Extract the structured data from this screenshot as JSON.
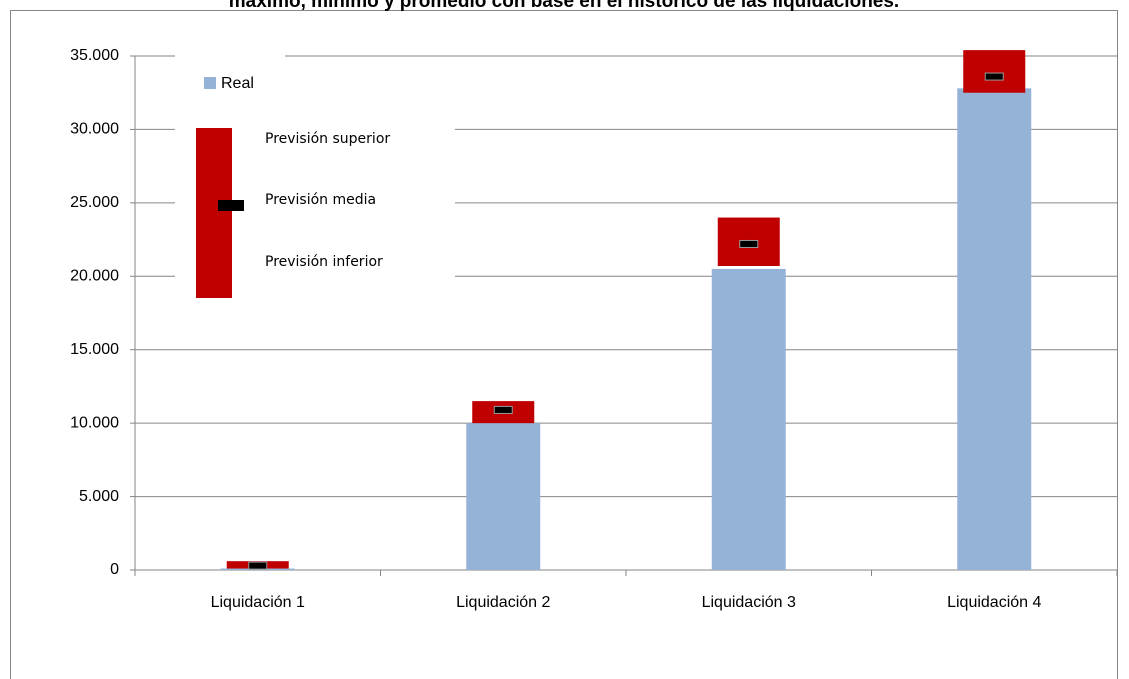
{
  "chart_data": {
    "type": "bar",
    "title": "máximo, mínimo y promedio con base en el histórico de las liquidaciones.",
    "categories": [
      "Liquidación 1",
      "Liquidación 2",
      "Liquidación 3",
      "Liquidación 4"
    ],
    "series": [
      {
        "name": "Real",
        "color": "#95b3d7",
        "values": [
          100,
          10000,
          20500,
          32800
        ]
      }
    ],
    "forecast": {
      "color": "#c00000",
      "marker_color": "#000000",
      "upper": {
        "name": "Previsión superior",
        "values": [
          600,
          11500,
          24000,
          35400
        ]
      },
      "mean": {
        "name": "Previsión media",
        "values": [
          300,
          10900,
          22200,
          33600
        ]
      },
      "lower": {
        "name": "Previsión inferior",
        "values": [
          100,
          10000,
          20700,
          32500
        ]
      }
    },
    "ylim": [
      0,
      35000
    ],
    "yticks": [
      0,
      {
        "value": 5000,
        "label": "5.000"
      },
      {
        "value": 10000,
        "label": "10.000"
      },
      {
        "value": 15000,
        "label": "15.000"
      },
      {
        "value": 20000,
        "label": "20.000"
      },
      {
        "value": 25000,
        "label": "25.000"
      },
      {
        "value": 30000,
        "label": "30.000"
      },
      {
        "value": 35000,
        "label": "35.000"
      }
    ],
    "grid": true
  }
}
